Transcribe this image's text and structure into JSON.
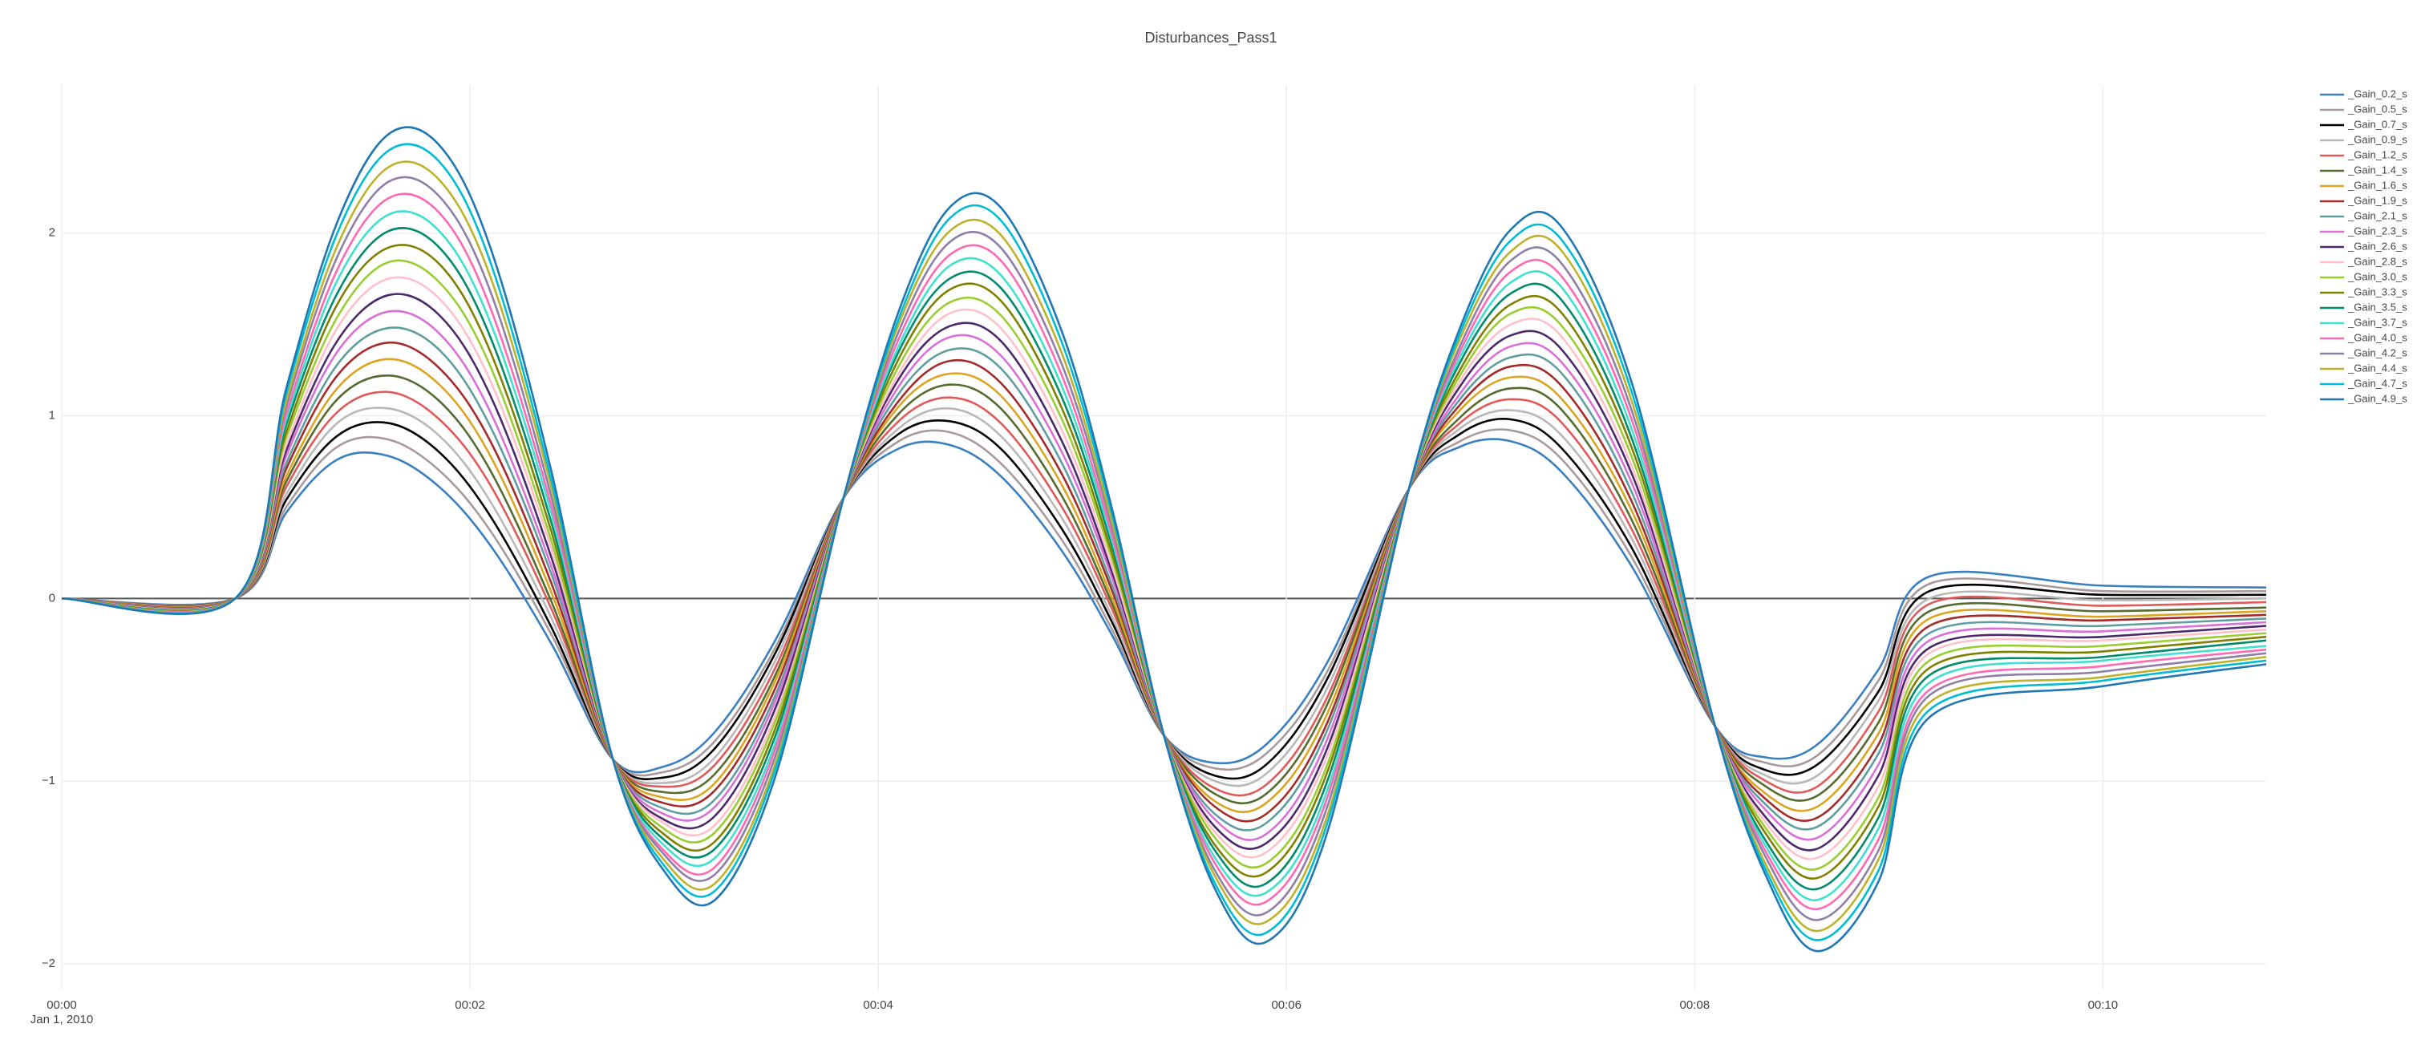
{
  "chart_data": {
    "type": "line",
    "title": "Disturbances_Pass1",
    "x_date_label": "Jan 1, 2010",
    "xlim": [
      0,
      10.8
    ],
    "xticks": [
      {
        "value": 0,
        "label": "00:00"
      },
      {
        "value": 2,
        "label": "00:02"
      },
      {
        "value": 4,
        "label": "00:04"
      },
      {
        "value": 6,
        "label": "00:06"
      },
      {
        "value": 8,
        "label": "00:08"
      },
      {
        "value": 10,
        "label": "00:10"
      }
    ],
    "ylim": [
      -2.14,
      2.81
    ],
    "yticks": [
      {
        "value": -2,
        "label": "−2"
      },
      {
        "value": -1,
        "label": "−1"
      },
      0,
      1,
      2
    ],
    "grid": true,
    "zeroline": true,
    "legend": "right",
    "x": [
      0,
      0.85,
      1.1,
      1.35,
      1.6,
      1.85,
      2.1,
      2.4,
      2.7,
      2.95,
      3.2,
      3.5,
      3.83,
      4.1,
      4.35,
      4.6,
      4.9,
      5.15,
      5.4,
      5.65,
      5.9,
      6.2,
      6.6,
      6.85,
      7.1,
      7.35,
      7.7,
      8.1,
      8.35,
      8.6,
      8.9,
      9.15,
      10.0,
      10.8
    ],
    "series": [
      {
        "name": "_Gain_0.2_s",
        "color": "#3a7fc0",
        "values": [
          0,
          0,
          0.47,
          0.76,
          0.78,
          0.61,
          0.29,
          -0.25,
          -0.88,
          -0.92,
          -0.73,
          -0.22,
          0.55,
          0.82,
          0.84,
          0.67,
          0.26,
          -0.21,
          -0.75,
          -0.9,
          -0.8,
          -0.35,
          0.6,
          0.83,
          0.86,
          0.69,
          0.16,
          -0.7,
          -0.87,
          -0.8,
          -0.39,
          0.12,
          0.07,
          0.06
        ]
      },
      {
        "name": "_Gain_0.5_s",
        "color": "#a89a9a",
        "values": [
          0,
          0,
          0.5,
          0.83,
          0.87,
          0.7,
          0.37,
          -0.2,
          -0.88,
          -0.95,
          -0.78,
          -0.26,
          0.55,
          0.86,
          0.91,
          0.74,
          0.32,
          -0.18,
          -0.75,
          -0.93,
          -0.85,
          -0.4,
          0.6,
          0.86,
          0.92,
          0.76,
          0.21,
          -0.7,
          -0.9,
          -0.86,
          -0.45,
          0.08,
          0.04,
          0.04
        ]
      },
      {
        "name": "_Gain_0.7_s",
        "color": "#000000",
        "values": [
          0,
          0,
          0.54,
          0.89,
          0.96,
          0.8,
          0.45,
          -0.16,
          -0.88,
          -0.98,
          -0.82,
          -0.29,
          0.55,
          0.9,
          0.97,
          0.82,
          0.38,
          -0.14,
          -0.75,
          -0.97,
          -0.91,
          -0.44,
          0.6,
          0.9,
          0.98,
          0.82,
          0.26,
          -0.7,
          -0.94,
          -0.91,
          -0.51,
          0.04,
          0.02,
          0.02
        ]
      },
      {
        "name": "_Gain_0.9_s",
        "color": "#b8b8b8",
        "values": [
          0,
          0,
          0.57,
          0.96,
          1.04,
          0.89,
          0.53,
          -0.11,
          -0.88,
          -1.01,
          -0.87,
          -0.33,
          0.55,
          0.93,
          1.04,
          0.89,
          0.44,
          -0.11,
          -0.75,
          -1,
          -0.96,
          -0.49,
          0.6,
          0.93,
          1.03,
          0.89,
          0.31,
          -0.7,
          -0.97,
          -0.97,
          -0.56,
          0,
          -0.01,
          0
        ]
      },
      {
        "name": "_Gain_1.2_s",
        "color": "#e05a5a",
        "values": [
          0,
          0,
          0.61,
          1.02,
          1.13,
          0.98,
          0.62,
          -0.06,
          -0.88,
          -1.03,
          -0.91,
          -0.37,
          0.55,
          0.97,
          1.1,
          0.96,
          0.5,
          -0.07,
          -0.75,
          -1.04,
          -1.02,
          -0.54,
          0.6,
          0.96,
          1.09,
          0.96,
          0.36,
          -0.7,
          -1,
          -1.03,
          -0.62,
          -0.03,
          -0.04,
          -0.02
        ]
      },
      {
        "name": "_Gain_1.4_s",
        "color": "#556b2f",
        "values": [
          0,
          0,
          0.64,
          1.09,
          1.22,
          1.08,
          0.7,
          -0.02,
          -0.88,
          -1.06,
          -0.96,
          -0.41,
          0.55,
          1.01,
          1.17,
          1.04,
          0.56,
          -0.04,
          -0.75,
          -1.07,
          -1.07,
          -0.58,
          0.6,
          0.99,
          1.15,
          1.03,
          0.41,
          -0.7,
          -1.03,
          -1.08,
          -0.68,
          -0.07,
          -0.07,
          -0.05
        ]
      },
      {
        "name": "_Gain_1.6_s",
        "color": "#daa520",
        "values": [
          0,
          0,
          0.67,
          1.15,
          1.31,
          1.17,
          0.78,
          0.03,
          -0.88,
          -1.09,
          -1.01,
          -0.44,
          0.55,
          1.05,
          1.23,
          1.11,
          0.62,
          -0.01,
          -0.75,
          -1.11,
          -1.12,
          -0.63,
          0.6,
          1.03,
          1.21,
          1.09,
          0.46,
          -0.7,
          -1.07,
          -1.14,
          -0.74,
          -0.11,
          -0.1,
          -0.07
        ]
      },
      {
        "name": "_Gain_1.9_s",
        "color": "#a52a2a",
        "values": [
          0,
          0,
          0.71,
          1.22,
          1.4,
          1.26,
          0.86,
          0.08,
          -0.88,
          -1.12,
          -1.05,
          -0.48,
          0.55,
          1.08,
          1.3,
          1.18,
          0.68,
          0.03,
          -0.75,
          -1.14,
          -1.18,
          -0.68,
          0.6,
          1.06,
          1.27,
          1.16,
          0.51,
          -0.7,
          -1.1,
          -1.2,
          -0.8,
          -0.15,
          -0.12,
          -0.09
        ]
      },
      {
        "name": "_Gain_2.1_s",
        "color": "#5f9ea0",
        "values": [
          0,
          0,
          0.74,
          1.28,
          1.48,
          1.36,
          0.94,
          0.13,
          -0.88,
          -1.15,
          -1.1,
          -0.52,
          0.55,
          1.12,
          1.36,
          1.26,
          0.74,
          0.06,
          -0.75,
          -1.18,
          -1.23,
          -0.72,
          0.6,
          1.09,
          1.32,
          1.23,
          0.56,
          -0.7,
          -1.13,
          -1.25,
          -0.85,
          -0.19,
          -0.15,
          -0.11
        ]
      },
      {
        "name": "_Gain_2.3_s",
        "color": "#da70d6",
        "values": [
          0,
          0,
          0.78,
          1.35,
          1.57,
          1.45,
          1.02,
          0.17,
          -0.88,
          -1.18,
          -1.14,
          -0.55,
          0.55,
          1.16,
          1.43,
          1.33,
          0.8,
          0.1,
          -0.75,
          -1.21,
          -1.29,
          -0.77,
          0.6,
          1.12,
          1.38,
          1.29,
          0.61,
          -0.7,
          -1.16,
          -1.31,
          -0.91,
          -0.23,
          -0.18,
          -0.13
        ]
      },
      {
        "name": "_Gain_2.6_s",
        "color": "#4b2a6b",
        "values": [
          0,
          0,
          0.81,
          1.41,
          1.66,
          1.55,
          1.11,
          0.22,
          -0.88,
          -1.21,
          -1.19,
          -0.59,
          0.55,
          1.2,
          1.49,
          1.41,
          0.86,
          0.13,
          -0.75,
          -1.25,
          -1.34,
          -0.82,
          0.6,
          1.16,
          1.44,
          1.36,
          0.66,
          -0.7,
          -1.2,
          -1.37,
          -0.97,
          -0.27,
          -0.21,
          -0.15
        ]
      },
      {
        "name": "_Gain_2.8_s",
        "color": "#ffc0cb",
        "values": [
          0,
          0,
          0.84,
          1.48,
          1.75,
          1.64,
          1.19,
          0.27,
          -0.88,
          -1.23,
          -1.24,
          -0.63,
          0.55,
          1.23,
          1.56,
          1.48,
          0.92,
          0.16,
          -0.75,
          -1.28,
          -1.39,
          -0.86,
          0.6,
          1.19,
          1.5,
          1.43,
          0.7,
          -0.7,
          -1.23,
          -1.42,
          -1.03,
          -0.3,
          -0.23,
          -0.17
        ]
      },
      {
        "name": "_Gain_3.0_s",
        "color": "#9acd32",
        "values": [
          0,
          0,
          0.88,
          1.54,
          1.84,
          1.73,
          1.27,
          0.31,
          -0.88,
          -1.26,
          -1.28,
          -0.66,
          0.55,
          1.27,
          1.62,
          1.55,
          0.98,
          0.2,
          -0.75,
          -1.31,
          -1.45,
          -0.91,
          0.6,
          1.22,
          1.56,
          1.49,
          0.75,
          -0.7,
          -1.26,
          -1.48,
          -1.09,
          -0.34,
          -0.26,
          -0.19
        ]
      },
      {
        "name": "_Gain_3.3_s",
        "color": "#808000",
        "values": [
          0,
          0,
          0.91,
          1.61,
          1.92,
          1.83,
          1.35,
          0.36,
          -0.88,
          -1.29,
          -1.33,
          -0.7,
          0.55,
          1.31,
          1.69,
          1.63,
          1.04,
          0.23,
          -0.75,
          -1.35,
          -1.5,
          -0.95,
          0.6,
          1.25,
          1.61,
          1.56,
          0.8,
          -0.7,
          -1.29,
          -1.53,
          -1.14,
          -0.38,
          -0.29,
          -0.21
        ]
      },
      {
        "name": "_Gain_3.5_s",
        "color": "#008b6b",
        "values": [
          0,
          0,
          0.95,
          1.67,
          2.01,
          1.92,
          1.43,
          0.41,
          -0.88,
          -1.32,
          -1.37,
          -0.74,
          0.55,
          1.35,
          1.75,
          1.7,
          1.1,
          0.27,
          -0.75,
          -1.38,
          -1.56,
          -1,
          0.6,
          1.29,
          1.67,
          1.63,
          0.85,
          -0.7,
          -1.33,
          -1.59,
          -1.2,
          -0.42,
          -0.32,
          -0.23
        ]
      },
      {
        "name": "_Gain_3.7_s",
        "color": "#40e0d0",
        "values": [
          0,
          0,
          0.98,
          1.74,
          2.1,
          2.01,
          1.51,
          0.46,
          -0.88,
          -1.35,
          -1.42,
          -0.78,
          0.55,
          1.38,
          1.82,
          1.77,
          1.16,
          0.3,
          -0.75,
          -1.42,
          -1.61,
          -1.05,
          0.6,
          1.32,
          1.73,
          1.7,
          0.9,
          -0.7,
          -1.36,
          -1.65,
          -1.26,
          -0.46,
          -0.34,
          -0.26
        ]
      },
      {
        "name": "_Gain_4.0_s",
        "color": "#ff69b4",
        "values": [
          0,
          0,
          1.01,
          1.8,
          2.19,
          2.11,
          1.59,
          0.5,
          -0.88,
          -1.38,
          -1.47,
          -0.81,
          0.55,
          1.42,
          1.88,
          1.85,
          1.22,
          0.33,
          -0.75,
          -1.45,
          -1.66,
          -1.09,
          0.6,
          1.35,
          1.79,
          1.76,
          0.95,
          -0.7,
          -1.39,
          -1.7,
          -1.32,
          -0.5,
          -0.37,
          -0.28
        ]
      },
      {
        "name": "_Gain_4.2_s",
        "color": "#8e7fa8",
        "values": [
          0,
          0,
          1.05,
          1.87,
          2.28,
          2.2,
          1.68,
          0.55,
          -0.88,
          -1.4,
          -1.51,
          -0.85,
          0.55,
          1.46,
          1.95,
          1.92,
          1.28,
          0.37,
          -0.75,
          -1.49,
          -1.72,
          -1.14,
          0.6,
          1.38,
          1.85,
          1.83,
          1,
          -0.7,
          -1.42,
          -1.76,
          -1.38,
          -0.53,
          -0.4,
          -0.3
        ]
      },
      {
        "name": "_Gain_4.4_s",
        "color": "#bdb22a",
        "values": [
          0,
          0,
          1.08,
          1.93,
          2.36,
          2.29,
          1.76,
          0.6,
          -0.88,
          -1.43,
          -1.56,
          -0.89,
          0.55,
          1.5,
          2.01,
          1.99,
          1.34,
          0.4,
          -0.75,
          -1.52,
          -1.77,
          -1.19,
          0.6,
          1.42,
          1.9,
          1.9,
          1.05,
          -0.7,
          -1.46,
          -1.82,
          -1.43,
          -0.57,
          -0.43,
          -0.32
        ]
      },
      {
        "name": "_Gain_4.7_s",
        "color": "#00bcd4",
        "values": [
          0,
          0,
          1.12,
          2,
          2.45,
          2.39,
          1.84,
          0.64,
          -0.88,
          -1.46,
          -1.6,
          -0.92,
          0.55,
          1.53,
          2.08,
          2.07,
          1.4,
          0.44,
          -0.75,
          -1.56,
          -1.83,
          -1.23,
          0.6,
          1.45,
          1.96,
          1.96,
          1.1,
          -0.7,
          -1.49,
          -1.87,
          -1.49,
          -0.61,
          -0.45,
          -0.34
        ]
      },
      {
        "name": "_Gain_4.9_s",
        "color": "#1f77b4",
        "values": [
          0,
          0,
          1.15,
          2.06,
          2.54,
          2.48,
          1.92,
          0.69,
          -0.88,
          -1.49,
          -1.65,
          -0.96,
          0.55,
          1.57,
          2.14,
          2.14,
          1.46,
          0.47,
          -0.75,
          -1.59,
          -1.88,
          -1.28,
          0.6,
          1.48,
          2.02,
          2.03,
          1.15,
          -0.7,
          -1.52,
          -1.93,
          -1.55,
          -0.65,
          -0.48,
          -0.36
        ]
      }
    ]
  }
}
